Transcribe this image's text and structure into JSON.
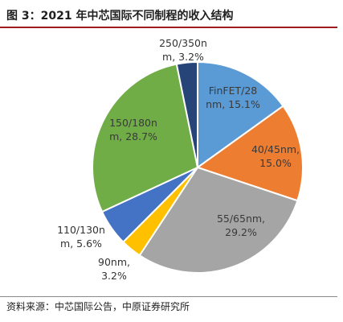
{
  "header": {
    "title": "图 3：2021 年中芯国际不同制程的收入结构"
  },
  "footer": {
    "source": "资料来源：中芯国际公告，中原证券研究所"
  },
  "chart_data": {
    "type": "pie",
    "title": "图 3：2021 年中芯国际不同制程的收入结构",
    "start_angle_deg": 0,
    "direction": "clockwise",
    "slices": [
      {
        "name": "FinFET/28nm",
        "value": 15.1,
        "label_lines": [
          "FinFET/28",
          "nm, 15.1%"
        ],
        "color": "#5B9BD5"
      },
      {
        "name": "40/45nm",
        "value": 15.0,
        "label_lines": [
          "40/45nm,",
          "15.0%"
        ],
        "color": "#ED7D31"
      },
      {
        "name": "55/65nm",
        "value": 29.2,
        "label_lines": [
          "55/65nm,",
          "29.2%"
        ],
        "color": "#A5A5A5"
      },
      {
        "name": "90nm",
        "value": 3.2,
        "label_lines": [
          "90nm,",
          "3.2%"
        ],
        "color": "#FFC000"
      },
      {
        "name": "110/130nm",
        "value": 5.6,
        "label_lines": [
          "110/130n",
          "m, 5.6%"
        ],
        "color": "#4472C4"
      },
      {
        "name": "150/180nm",
        "value": 28.7,
        "label_lines": [
          "150/180n",
          "m, 28.7%"
        ],
        "color": "#70AD47"
      },
      {
        "name": "250/350nm",
        "value": 3.2,
        "label_lines": [
          "250/350n",
          "m, 3.2%"
        ],
        "color": "#264478"
      }
    ]
  }
}
